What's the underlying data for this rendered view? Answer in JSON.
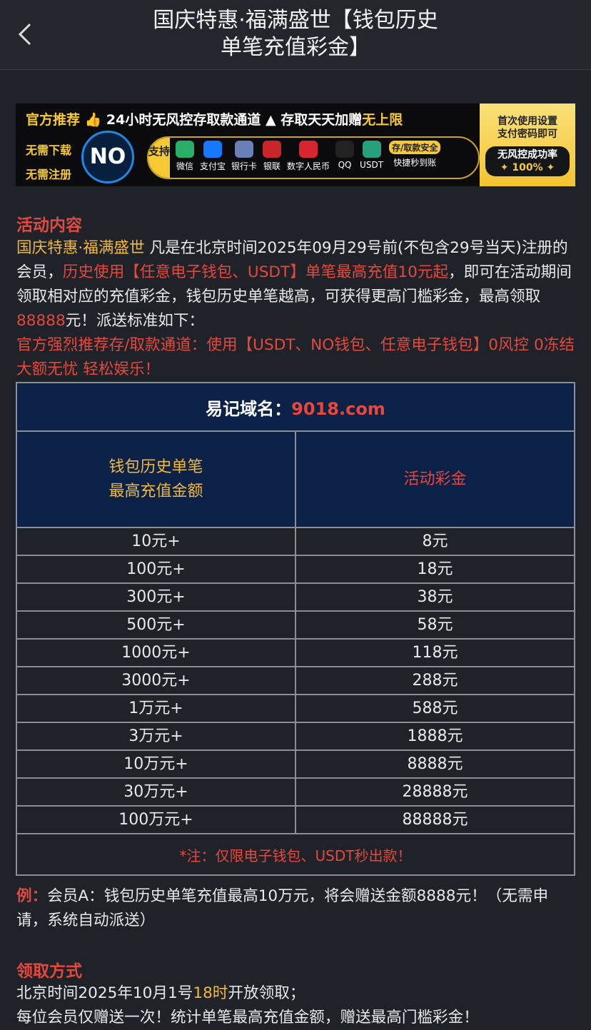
{
  "header": {
    "title_lines": [
      "国庆特惠·福满盛世【钱包历史",
      "单笔充值彩金】"
    ]
  },
  "banner": {
    "recommend": "官方推荐",
    "channel": "24小时无风控存取款通道",
    "bonus": "存取天天加赠",
    "unlimited": "无上限",
    "no_download": "无需下载",
    "no_register": "无需注册",
    "logo": "NO",
    "support": "支持",
    "methods": [
      "微信",
      "支付宝",
      "银行卡",
      "银联",
      "数字人民币",
      "QQ",
      "USDT"
    ],
    "safe": "存/取款安全",
    "fast": "快捷秒到账",
    "setup_lines": [
      "首次使用设置",
      "支付密码即可"
    ],
    "rate_lines": [
      "无风控成功率",
      "✦ 100% ✦"
    ]
  },
  "activity": {
    "heading": "活动内容",
    "intro": [
      "国庆特惠·福满盛世",
      " 凡是在北京时间2025年09月29号前(不包含29号当天)注册的会员，",
      "历史使用【任意电子钱包、USDT】单笔最高充值10元起",
      "，即可在活动期间领取相对应的充值彩金，钱包历史单笔越高，可获得更高门槛彩金，最高领取",
      "88888",
      "元！派送标准如下："
    ],
    "recommend": "官方强烈推荐存/取款通道：使用【USDT、NO钱包、任意电子钱包】0风控 0冻结 大额无忧 轻松娱乐！"
  },
  "table": {
    "domain_label": "易记域名：",
    "domain": "9018.com",
    "columns": [
      [
        "钱包历史单笔",
        "最高充值金额"
      ],
      "活动彩金"
    ],
    "rows": [
      [
        "10元+",
        "8元"
      ],
      [
        "100元+",
        "18元"
      ],
      [
        "300元+",
        "38元"
      ],
      [
        "500元+",
        "58元"
      ],
      [
        "1000元+",
        "118元"
      ],
      [
        "3000元+",
        "288元"
      ],
      [
        "1万元+",
        "588元"
      ],
      [
        "3万元+",
        "1888元"
      ],
      [
        "10万元+",
        "8888元"
      ],
      [
        "30万元+",
        "28888元"
      ],
      [
        "100万元+",
        "88888元"
      ]
    ],
    "note": "*注：仅限电子钱包、USDT秒出款！"
  },
  "example": {
    "label": "例：",
    "text": "会员A：钱包历史单笔充值最高10万元，将会赠送金额8888元！（无需申请，系统自动派送）"
  },
  "claim": {
    "heading": "领取方式",
    "line1": [
      "北京时间2025年10月1号",
      "18时",
      "开放领取；"
    ],
    "line2": "每位会员仅赠送一次！统计单笔最高充值金额，赠送最高门槛彩金！"
  }
}
